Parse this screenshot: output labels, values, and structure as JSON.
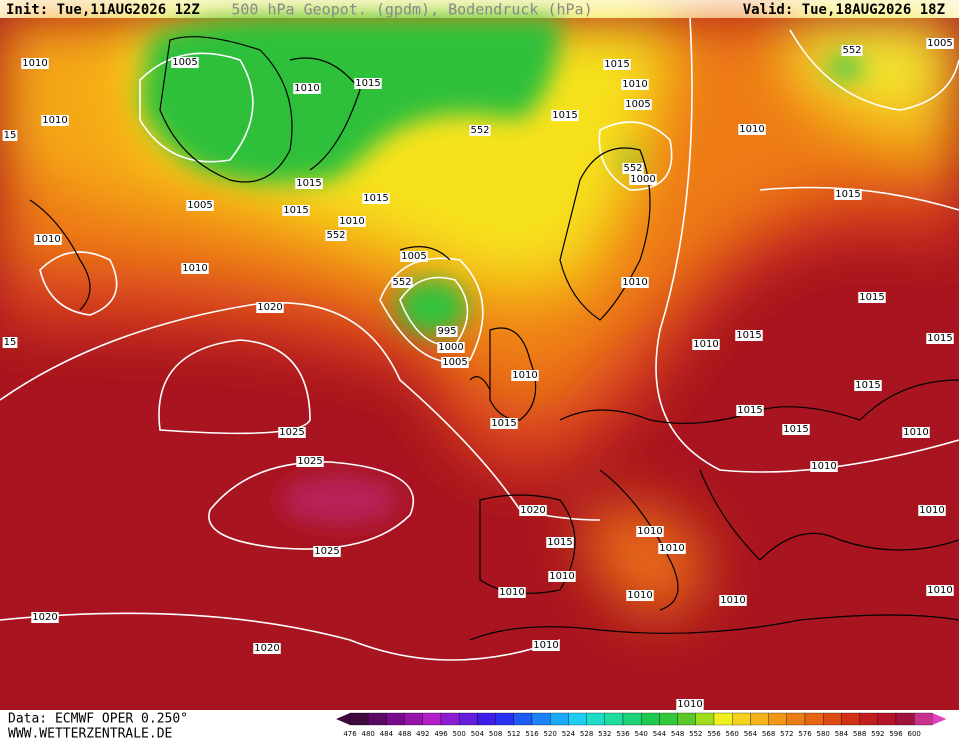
{
  "header": {
    "init": "Init: Tue,11AUG2026 12Z",
    "title": "500 hPa Geopot. (gpdm), Bodendruck (hPa)",
    "valid": "Valid: Tue,18AUG2026 18Z"
  },
  "footer": {
    "data_source": "Data: ECMWF OPER 0.250°",
    "website": "WWW.WETTERZENTRALE.DE"
  },
  "isobar_labels": [
    "1010",
    "1005",
    "1010",
    "1015",
    "1010",
    "15",
    "1015",
    "1010",
    "1005",
    "1015",
    "552",
    "552",
    "1005",
    "1010",
    "1015",
    "552",
    "1000",
    "1015",
    "1015",
    "1005",
    "1015",
    "1010",
    "552",
    "1010",
    "1005",
    "1010",
    "552",
    "1010",
    "1020",
    "1015",
    "995",
    "1000",
    "1005",
    "1010",
    "1015",
    "1015",
    "1015",
    "1010",
    "1015",
    "1025",
    "1015",
    "1015",
    "1010",
    "1025",
    "1010",
    "1020",
    "1010",
    "1010",
    "1015",
    "1010",
    "1025",
    "1010",
    "1010",
    "1010",
    "1010",
    "1010",
    "1020",
    "1020",
    "1010",
    "1010",
    "15"
  ],
  "colorbar_labels": [
    "476",
    "480",
    "484",
    "488",
    "492",
    "496",
    "500",
    "504",
    "508",
    "512",
    "516",
    "520",
    "524",
    "528",
    "532",
    "536",
    "540",
    "544",
    "548",
    "552",
    "556",
    "560",
    "564",
    "568",
    "572",
    "576",
    "580",
    "584",
    "588",
    "592",
    "596",
    "600"
  ]
}
